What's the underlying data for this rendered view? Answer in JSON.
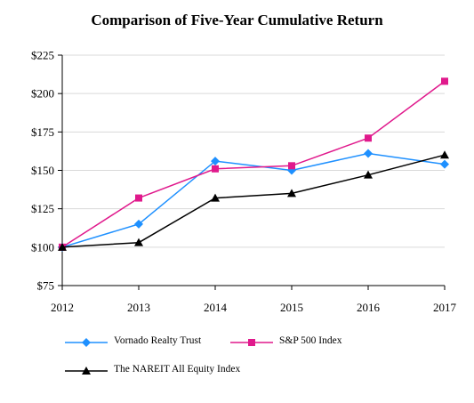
{
  "chart_data": {
    "type": "line",
    "title": "Comparison of Five-Year Cumulative Return",
    "x": [
      "2012",
      "2013",
      "2014",
      "2015",
      "2016",
      "2017"
    ],
    "ylim": [
      75,
      225
    ],
    "yticks": [
      75,
      100,
      125,
      150,
      175,
      200,
      225
    ],
    "ytick_labels": [
      "$75",
      "$100",
      "$125",
      "$150",
      "$175",
      "$200",
      "$225"
    ],
    "grid": "horizontal",
    "legend_position": "bottom",
    "series": [
      {
        "name": "Vornado Realty Trust",
        "color": "#1E90FF",
        "marker": "diamond",
        "values": [
          100,
          115,
          156,
          150,
          161,
          154
        ]
      },
      {
        "name": "S&P 500 Index",
        "color": "#E0198C",
        "marker": "square",
        "values": [
          100,
          132,
          151,
          153,
          171,
          208
        ]
      },
      {
        "name": "The NAREIT All Equity Index",
        "color": "#000000",
        "marker": "triangle",
        "values": [
          100,
          103,
          132,
          135,
          147,
          160
        ]
      }
    ]
  }
}
